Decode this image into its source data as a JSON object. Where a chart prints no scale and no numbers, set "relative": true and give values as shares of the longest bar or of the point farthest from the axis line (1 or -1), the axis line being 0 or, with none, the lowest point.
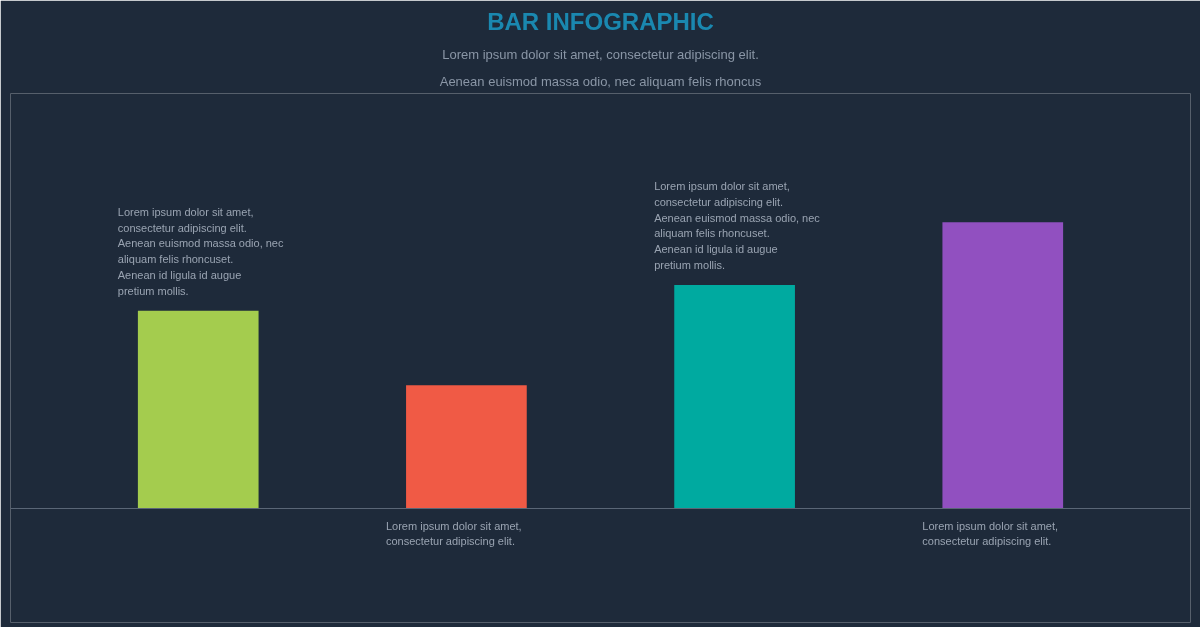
{
  "chart_data": {
    "type": "bar",
    "title": "BAR INFOGRAPHIC",
    "subtitle": "Lorem ipsum dolor sit amet, consectetur adipiscing elit. Aenean euismod massa odio, nec aliquam felis rhoncus",
    "categories": [
      null,
      null,
      null,
      null
    ],
    "values": [
      0.69,
      0.43,
      0.78,
      1.0
    ],
    "colors": [
      "#a4cc4e",
      "#f05a45",
      "#00aaa0",
      "#9150c0"
    ],
    "relative": true,
    "annotations": [
      "Lorem ipsum dolor sit amet, consectetur adipiscing elit. Aenean euismod massa odio, nec aliquam felis rhoncuset. Aenean id ligula id augue pretium mollis.",
      "Lorem ipsum dolor sit amet, consectetur adipiscing elit.",
      "Lorem ipsum dolor sit amet, consectetur adipiscing elit. Aenean euismod massa odio, nec aliquam felis rhoncuset. Aenean id ligula id augue pretium mollis.",
      "Lorem ipsum dolor sit amet, consectetur adipiscing elit."
    ]
  }
}
